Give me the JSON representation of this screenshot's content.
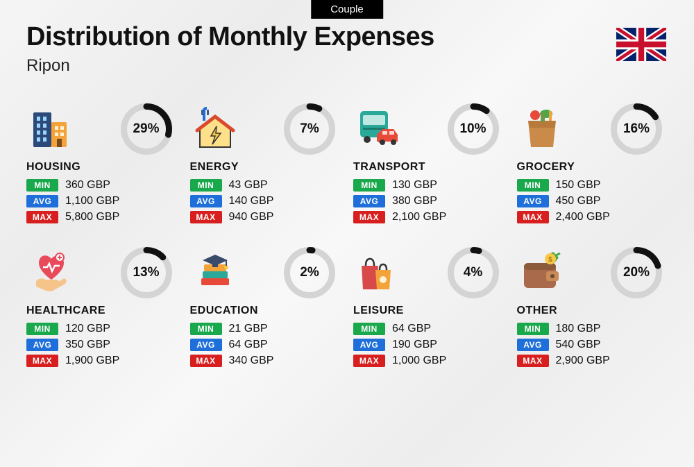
{
  "badge": "Couple",
  "title": "Distribution of Monthly Expenses",
  "subtitle": "Ripon",
  "currency": "GBP",
  "labels": {
    "min": "MIN",
    "avg": "AVG",
    "max": "MAX"
  },
  "colors": {
    "min_badge": "#1aa84c",
    "avg_badge": "#1e6fd9",
    "max_badge": "#d81f1f",
    "donut_track": "#d4d4d4",
    "donut_fill": "#111111",
    "text": "#111111",
    "badge_bg": "#000000",
    "badge_text": "#ffffff"
  },
  "donut": {
    "size": 74,
    "stroke": 9,
    "track_stroke": 9
  },
  "categories": [
    {
      "key": "housing",
      "name": "HOUSING",
      "pct": 29,
      "min": "360",
      "avg": "1,100",
      "max": "5,800",
      "icon": "buildings"
    },
    {
      "key": "energy",
      "name": "ENERGY",
      "pct": 7,
      "min": "43",
      "avg": "140",
      "max": "940",
      "icon": "energy-house"
    },
    {
      "key": "transport",
      "name": "TRANSPORT",
      "pct": 10,
      "min": "130",
      "avg": "380",
      "max": "2,100",
      "icon": "bus-car"
    },
    {
      "key": "grocery",
      "name": "GROCERY",
      "pct": 16,
      "min": "150",
      "avg": "450",
      "max": "2,400",
      "icon": "grocery-bag"
    },
    {
      "key": "healthcare",
      "name": "HEALTHCARE",
      "pct": 13,
      "min": "120",
      "avg": "350",
      "max": "1,900",
      "icon": "heart-hand"
    },
    {
      "key": "education",
      "name": "EDUCATION",
      "pct": 2,
      "min": "21",
      "avg": "64",
      "max": "340",
      "icon": "grad-books"
    },
    {
      "key": "leisure",
      "name": "LEISURE",
      "pct": 4,
      "min": "64",
      "avg": "190",
      "max": "1,000",
      "icon": "shopping-bags"
    },
    {
      "key": "other",
      "name": "OTHER",
      "pct": 20,
      "min": "180",
      "avg": "540",
      "max": "2,900",
      "icon": "wallet"
    }
  ],
  "icon_svgs": {
    "buildings": "<svg width='64' height='64' viewBox='0 0 64 64'><rect x='6' y='8' width='26' height='50' rx='2' fill='#2b4a7a'/><rect x='32' y='22' width='22' height='36' rx='2' fill='#f4a23a'/><rect x='11' y='14' width='5' height='6' fill='#9bd4ff'/><rect x='20' y='14' width='5' height='6' fill='#9bd4ff'/><rect x='11' y='24' width='5' height='6' fill='#9bd4ff'/><rect x='20' y='24' width='5' height='6' fill='#9bd4ff'/><rect x='11' y='34' width='5' height='6' fill='#9bd4ff'/><rect x='20' y='34' width='5' height='6' fill='#9bd4ff'/><rect x='11' y='44' width='5' height='6' fill='#9bd4ff'/><rect x='20' y='44' width='5' height='6' fill='#9bd4ff'/><rect x='37' y='28' width='5' height='5' fill='#fff3d6'/><rect x='45' y='28' width='5' height='5' fill='#fff3d6'/><rect x='37' y='37' width='5' height='5' fill='#fff3d6'/><rect x='45' y='37' width='5' height='5' fill='#fff3d6'/><rect x='40' y='46' width='7' height='12' fill='#7a4a1f'/></svg>",
    "energy-house": "<svg width='64' height='64' viewBox='0 0 64 64'><path d='M20 2 Q16 2 16 6 L16 20' stroke='#1e6fd9' stroke-width='4' fill='none'/><rect x='12' y='4' width='3' height='8' rx='1' fill='#3a5a8a'/><rect x='20' y='4' width='3' height='8' rx='1' fill='#3a5a8a'/><path d='M10 32 L32 16 L54 32 L54 58 L10 58 Z' fill='#ffe08a' stroke='#333' stroke-width='2'/><path d='M6 34 L32 14 L58 34' fill='none' stroke='#d84a2b' stroke-width='5' stroke-linecap='round'/><path d='M34 28 L26 42 L32 42 L28 54 L40 38 L33 38 Z' fill='#f9c846' stroke='#333' stroke-width='1.5'/></svg>",
    "bus-car": "<svg width='64' height='64' viewBox='0 0 64 64'><rect x='6' y='6' width='40' height='38' rx='5' fill='#2aa89a'/><rect x='10' y='12' width='32' height='14' rx='2' fill='#bfe8e2'/><circle cx='16' cy='47' r='5' fill='#333'/><circle cx='36' cy='47' r='5' fill='#333'/><rect x='10' y='30' width='32' height='3' fill='#1a7a6e'/><path d='M30 40 L38 32 L54 32 L60 40 L60 50 L30 50 Z' fill='#e84a3a'/><rect x='38' y='35' width='7' height='5' fill='#ffd6cf'/><rect x='48' y='35' width='7' height='5' fill='#ffd6cf'/><circle cx='38' cy='51' r='4' fill='#333'/><circle cx='54' cy='51' r='4' fill='#333'/></svg>",
    "grocery-bag": "<svg width='64' height='64' viewBox='0 0 64 64'><circle cx='22' cy='12' r='7' fill='#e84a3a'/><ellipse cx='38' cy='10' rx='9' ry='6' fill='#4aa84a'/><rect x='42' y='6' width='4' height='14' fill='#f4a23a'/><path d='M12 20 L52 20 L48 58 L16 58 Z' fill='#c98a4a'/><path d='M12 20 L52 20 L50 30 L14 30 Z' fill='#b87a3a'/><rect x='30' y='8' width='6' height='14' fill='#6a9a4a'/></svg>",
    "heart-hand": "<svg width='64' height='64' viewBox='0 0 64 64'><path d='M32 12 C26 4 14 6 14 18 C14 30 32 42 32 42 C32 42 50 30 50 18 C50 6 38 4 32 12 Z' fill='#e84a5a'/><circle cx='44' cy='10' r='6' fill='#fff' stroke='#e84a5a' stroke-width='2'/><path d='M41 10 L47 10 M44 7 L44 13' stroke='#e84a5a' stroke-width='2'/><path d='M20 24 L26 24 L29 19 L33 30 L37 22 L44 22' stroke='#fff' stroke-width='2.5' fill='none'/><path d='M10 44 Q16 38 24 42 L38 42 Q44 42 44 48 L28 48 Q40 48 50 40 Q56 42 52 48 L34 58 Q28 60 20 56 L10 52 Z' fill='#f4c48a'/></svg>",
    "grad-books": "<svg width='64' height='64' viewBox='0 0 64 64'><rect x='12' y='40' width='40' height='10' rx='2' fill='#e84a3a'/><rect x='14' y='30' width='36' height='10' rx='2' fill='#2aa89a'/><rect x='16' y='20' width='32' height='10' rx='2' fill='#f4a23a'/><path d='M14 14 L32 6 L50 14 L32 22 Z' fill='#3a4a6a'/><rect x='28' y='18' width='8' height='6' fill='#3a4a6a'/><circle cx='48' cy='24' r='3' fill='#f9c846'/><line x1='48' y1='14' x2='48' y2='22' stroke='#3a4a6a' stroke-width='2'/></svg>",
    "shopping-bags": "<svg width='64' height='64' viewBox='0 0 64 64'><path d='M8 22 L32 22 L30 56 L10 56 Z' fill='#d84a4a'/><path d='M14 22 Q14 12 20 12 Q26 12 26 22' fill='none' stroke='#333' stroke-width='2.5'/><path d='M28 28 L50 28 L48 56 L30 56 Z' fill='#f4a23a'/><path d='M34 28 Q34 20 39 20 Q44 20 44 28' fill='none' stroke='#333' stroke-width='2.5'/><circle cx='39' cy='42' r='5' fill='#fff3d6'/></svg>",
    "wallet": "<svg width='64' height='64' viewBox='0 0 64 64'><path d='M40 6 L48 2 L56 10 L50 18' fill='#4aa84a'/><path d='M50 8 L58 4' stroke='#4aa84a' stroke-width='3'/><rect x='6' y='18' width='46' height='36' rx='6' fill='#a86a4a'/><rect x='6' y='18' width='46' height='10' rx='6' fill='#8a5a3a'/><rect x='38' y='30' width='18' height='14' rx='3' fill='#c98a5a'/><circle cx='47' cy='37' r='3' fill='#6a4a2a'/><circle cx='44' cy='12' r='8' fill='#f9c846'/><text x='44' y='16' font-size='10' text-anchor='middle' fill='#9a7a1a' font-weight='bold'>$</text></svg>"
  },
  "flag_svg": "<svg width='72' height='48' viewBox='0 0 60 40'><rect width='60' height='40' fill='#012169'/><path d='M0 0 L60 40 M60 0 L0 40' stroke='#fff' stroke-width='8'/><path d='M0 0 L60 40 M60 0 L0 40' stroke='#C8102E' stroke-width='4'/><path d='M30 0 V40 M0 20 H60' stroke='#fff' stroke-width='12'/><path d='M30 0 V40 M0 20 H60' stroke='#C8102E' stroke-width='7'/></svg>"
}
